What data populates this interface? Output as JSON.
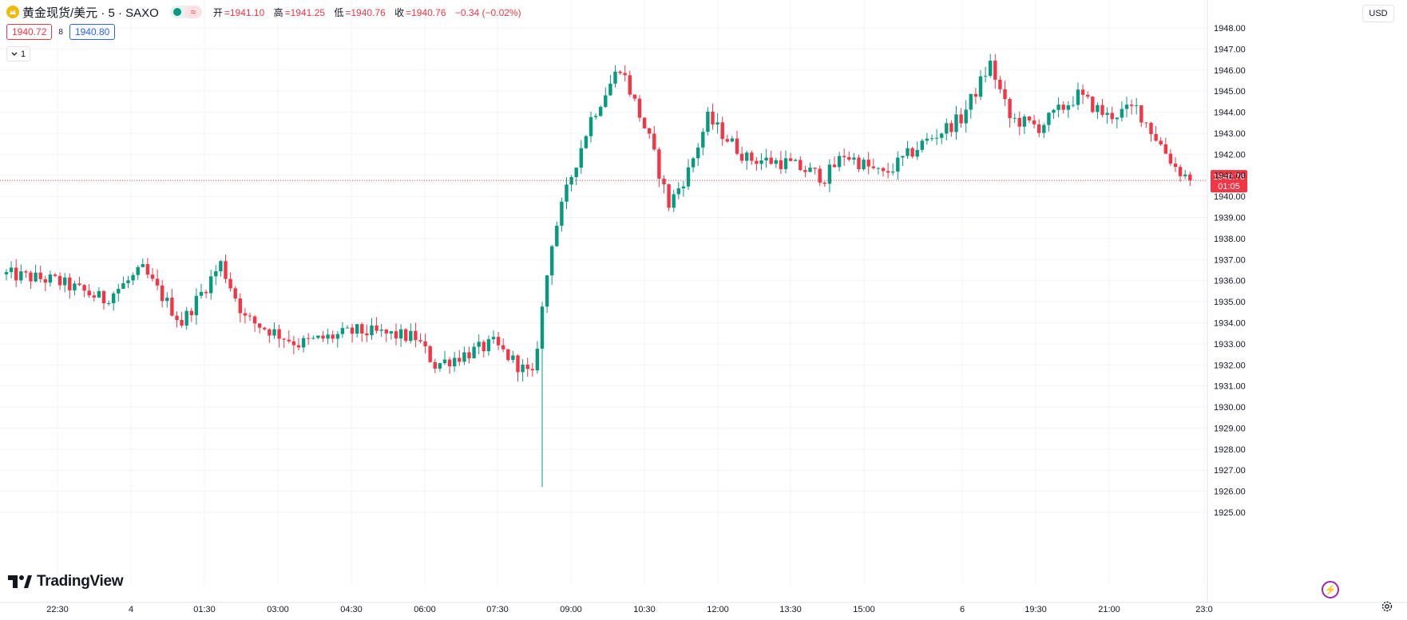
{
  "symbol": {
    "name": "黄金现货/美元 · 5 · SAXO",
    "icon": "gold-coin-icon",
    "toggle_symbol": "≈"
  },
  "ohlc": {
    "open_label": "开",
    "open": "=1941.10",
    "high_label": "高",
    "high": "=1941.25",
    "low_label": "低",
    "low": "=1940.76",
    "close_label": "收",
    "close": "=1940.76",
    "change": "−0.34 (−0.02%)"
  },
  "quote": {
    "bid": "1940.72",
    "spread": "8",
    "ask": "1940.80"
  },
  "collapse": {
    "label": "1",
    "icon": "chevron-down-icon"
  },
  "currency": "USD",
  "branding": {
    "logo_text": "TradingView",
    "icon": "tradingview-logo-icon"
  },
  "colors": {
    "up": "#089981",
    "down": "#f23645",
    "grid": "#f0f3fa",
    "axis_text": "#131722",
    "last_price_line": "#f23645"
  },
  "chart_data": {
    "type": "candlestick",
    "title": "黄金现货/美元 · 5 · SAXO",
    "ylim": [
      1924.6,
      1948.5
    ],
    "y_ticks": [
      "1948.00",
      "1947.00",
      "1946.00",
      "1945.00",
      "1944.00",
      "1943.00",
      "1942.00",
      "1941.00",
      "1940.00",
      "1939.00",
      "1938.00",
      "1937.00",
      "1936.00",
      "1935.00",
      "1934.00",
      "1933.00",
      "1932.00",
      "1931.00",
      "1930.00",
      "1929.00",
      "1928.00",
      "1927.00",
      "1926.00",
      "1925.00"
    ],
    "x_ticks": [
      "22:30",
      "4",
      "01:30",
      "03:00",
      "04:30",
      "06:00",
      "07:30",
      "09:00",
      "10:30",
      "12:00",
      "13:30",
      "15:00",
      "6",
      "19:30",
      "21:00",
      "23:0"
    ],
    "last_price": {
      "value": 1940.76,
      "label": "1940.76",
      "countdown": "01:05"
    },
    "anchors": [
      [
        0,
        1936.3
      ],
      [
        10,
        1936.0
      ],
      [
        20,
        1935.1
      ],
      [
        28,
        1936.5
      ],
      [
        36,
        1934.0
      ],
      [
        44,
        1936.8
      ],
      [
        49,
        1934.2
      ],
      [
        60,
        1933.0
      ],
      [
        72,
        1933.6
      ],
      [
        84,
        1933.3
      ],
      [
        88,
        1932.0
      ],
      [
        100,
        1933.0
      ],
      [
        108,
        1931.4
      ],
      [
        112,
        1937.9
      ],
      [
        116,
        1941.0
      ],
      [
        120,
        1943.7
      ],
      [
        126,
        1946.2
      ],
      [
        132,
        1942.7
      ],
      [
        136,
        1939.6
      ],
      [
        140,
        1941.2
      ],
      [
        144,
        1943.7
      ],
      [
        152,
        1941.8
      ],
      [
        160,
        1941.6
      ],
      [
        168,
        1940.9
      ],
      [
        172,
        1942.0
      ],
      [
        180,
        1941.0
      ],
      [
        188,
        1942.5
      ],
      [
        196,
        1943.7
      ],
      [
        202,
        1946.3
      ],
      [
        206,
        1943.7
      ],
      [
        212,
        1943.3
      ],
      [
        220,
        1944.8
      ],
      [
        226,
        1943.8
      ],
      [
        232,
        1944.2
      ],
      [
        240,
        1941.4
      ],
      [
        243,
        1940.76
      ]
    ],
    "special": [
      {
        "index": 110,
        "low": 1926.2
      }
    ],
    "n_candles": 244
  }
}
